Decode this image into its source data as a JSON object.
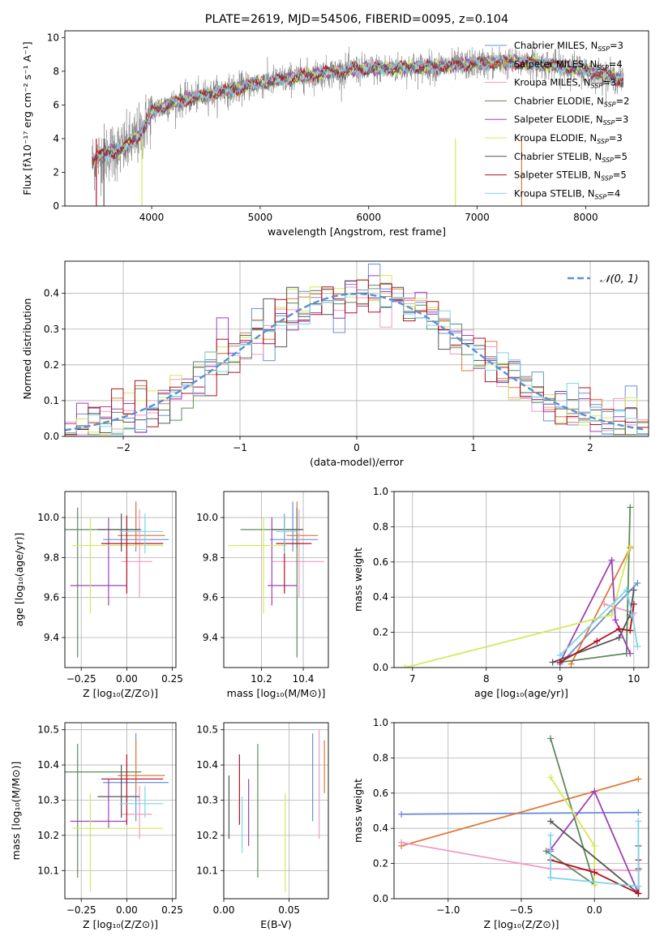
{
  "colors": [
    "#6b8fd6",
    "#e07b39",
    "#f09ac4",
    "#5c8a5c",
    "#a040b8",
    "#d4e85a",
    "#555555",
    "#b01020",
    "#7dd4e8"
  ],
  "chart_data": [
    {
      "id": "spectrum",
      "type": "line",
      "title": "PLATE=2619, MJD=54506, FIBERID=0095, z=0.104",
      "xlabel": "wavelength [Angstrom, rest frame]",
      "ylabel": "Flux [fλ10⁻¹⁷ erg cm⁻² s⁻¹ A⁻¹]",
      "xlim": [
        3200,
        8580
      ],
      "ylim": [
        0,
        10.4
      ],
      "xticks": [
        4000,
        5000,
        6000,
        7000,
        8000
      ],
      "yticks": [
        0,
        2,
        4,
        6,
        8,
        10
      ],
      "grid": false,
      "legend_position": "right",
      "legend": [
        {
          "label": "Chabrier MILES, N",
          "sub": "SSP",
          "tail": "=3",
          "color": "#6b8fd6"
        },
        {
          "label": "Salpeter MILES, N",
          "sub": "SSP",
          "tail": "=4",
          "color": "#e07b39"
        },
        {
          "label": "Kroupa MILES, N",
          "sub": "SSP",
          "tail": "=3",
          "color": "#f09ac4"
        },
        {
          "label": "Chabrier ELODIE, N",
          "sub": "SSP",
          "tail": "=2",
          "color": "#5c8a5c"
        },
        {
          "label": "Salpeter ELODIE, N",
          "sub": "SSP",
          "tail": "=3",
          "color": "#a040b8"
        },
        {
          "label": "Kroupa ELODIE, N",
          "sub": "SSP",
          "tail": "=3",
          "color": "#d4e85a"
        },
        {
          "label": "Chabrier STELIB, N",
          "sub": "SSP",
          "tail": "=5",
          "color": "#555555"
        },
        {
          "label": "Salpeter STELIB, N",
          "sub": "SSP",
          "tail": "=5",
          "color": "#b01020"
        },
        {
          "label": "Kroupa STELIB, N",
          "sub": "SSP",
          "tail": "=4",
          "color": "#7dd4e8"
        }
      ],
      "data_color": "#808080",
      "model_color": "#7dd4e8",
      "continuum": [
        [
          3450,
          2.7
        ],
        [
          3600,
          3.2
        ],
        [
          3750,
          3.4
        ],
        [
          3900,
          4.3
        ],
        [
          4000,
          5.6
        ],
        [
          4100,
          5.9
        ],
        [
          4300,
          6.3
        ],
        [
          4500,
          6.6
        ],
        [
          4800,
          7.0
        ],
        [
          5000,
          7.3
        ],
        [
          5300,
          7.6
        ],
        [
          5600,
          7.9
        ],
        [
          5900,
          8.1
        ],
        [
          6300,
          8.2
        ],
        [
          6700,
          8.3
        ],
        [
          7100,
          8.5
        ],
        [
          7500,
          8.5
        ],
        [
          7900,
          8.2
        ],
        [
          8350,
          7.5
        ]
      ]
    },
    {
      "id": "residuals",
      "type": "line",
      "xlabel": "(data-model)/error",
      "ylabel": "Normed distribution",
      "xlim": [
        -2.5,
        2.5
      ],
      "ylim": [
        0,
        0.49
      ],
      "xticks": [
        -2,
        -1,
        0,
        1,
        2
      ],
      "yticks": [
        0.0,
        0.1,
        0.2,
        0.3,
        0.4
      ],
      "grid": true,
      "legend_position": "top-right",
      "gauss_label": "𝒩(0, 1)",
      "gauss_color": "#5b8fd6",
      "bin_width": 0.1
    },
    {
      "id": "age-vs-z",
      "type": "scatter",
      "xlabel": "Z [log₁₀(Z/Z⊙)]",
      "ylabel": "age  [log₁₀(age/yr)]",
      "xlim": [
        -0.34,
        0.27
      ],
      "ylim": [
        9.25,
        10.13
      ],
      "xticks": [
        -0.25,
        0.0,
        0.25
      ],
      "yticks": [
        9.4,
        9.6,
        9.8,
        10.0
      ],
      "grid": true,
      "points": [
        {
          "x": 0.05,
          "y": 9.89,
          "xe": [
            0.18,
            0.18
          ],
          "ye": [
            0.06,
            0.19
          ]
        },
        {
          "x": 0.05,
          "y": 9.91,
          "xe": [
            0.1,
            0.16
          ],
          "ye": [
            0.06,
            0.17
          ]
        },
        {
          "x": 0.07,
          "y": 9.78,
          "xe": [
            0.1,
            0.07
          ],
          "ye": [
            0.18,
            0.26
          ]
        },
        {
          "x": -0.27,
          "y": 9.94,
          "xe": [
            0.1,
            0.35
          ],
          "ye": [
            0.64,
            0.11
          ]
        },
        {
          "x": -0.1,
          "y": 9.66,
          "xe": [
            0.21,
            0.1
          ],
          "ye": [
            0.1,
            0.34
          ]
        },
        {
          "x": -0.2,
          "y": 9.86,
          "xe": [
            0.1,
            0.4
          ],
          "ye": [
            0.34,
            0.14
          ]
        },
        {
          "x": -0.03,
          "y": 9.94,
          "xe": [
            0.13,
            0.1
          ],
          "ye": [
            0.11,
            0.08
          ]
        },
        {
          "x": 0.0,
          "y": 9.87,
          "xe": [
            0.14,
            0.2
          ],
          "ye": [
            0.25,
            0.14
          ]
        },
        {
          "x": 0.1,
          "y": 9.93,
          "xe": [
            0.14,
            0.1
          ],
          "ye": [
            0.11,
            0.09
          ]
        }
      ]
    },
    {
      "id": "age-vs-mass",
      "type": "scatter",
      "xlabel": "mass [log₁₀(M/M⊙)]",
      "xlim": [
        10.02,
        10.52
      ],
      "ylim": [
        9.25,
        10.13
      ],
      "xticks": [
        10.2,
        10.4
      ],
      "yticks": [
        9.4,
        9.6,
        9.8,
        10.0
      ],
      "grid": true,
      "points": [
        {
          "x": 10.35,
          "y": 9.89,
          "xe": [
            0.11,
            0.12
          ],
          "ye": [
            0.06,
            0.19
          ]
        },
        {
          "x": 10.37,
          "y": 9.91,
          "xe": [
            0.05,
            0.1
          ],
          "ye": [
            0.06,
            0.17
          ]
        },
        {
          "x": 10.38,
          "y": 9.78,
          "xe": [
            0.13,
            0.12
          ],
          "ye": [
            0.18,
            0.26
          ]
        },
        {
          "x": 10.37,
          "y": 9.94,
          "xe": [
            0.27,
            0.03
          ],
          "ye": [
            0.64,
            0.11
          ]
        },
        {
          "x": 10.25,
          "y": 9.66,
          "xe": [
            0.02,
            0.12
          ],
          "ye": [
            0.1,
            0.34
          ]
        },
        {
          "x": 10.21,
          "y": 9.86,
          "xe": [
            0.17,
            0.11
          ],
          "ye": [
            0.34,
            0.14
          ]
        },
        {
          "x": 10.31,
          "y": 9.94,
          "xe": [
            0.06,
            0.09
          ],
          "ye": [
            0.11,
            0.08
          ]
        },
        {
          "x": 10.31,
          "y": 9.87,
          "xe": [
            0.04,
            0.13
          ],
          "ye": [
            0.25,
            0.14
          ]
        },
        {
          "x": 10.31,
          "y": 9.93,
          "xe": [
            0.04,
            0.06
          ],
          "ye": [
            0.11,
            0.09
          ]
        }
      ]
    },
    {
      "id": "weight-vs-age",
      "type": "line",
      "xlabel": "age  [log₁₀(age/yr)]",
      "ylabel": "mass weight",
      "xlim": [
        6.75,
        10.2
      ],
      "ylim": [
        0,
        1
      ],
      "xticks": [
        7,
        8,
        9,
        10
      ],
      "yticks": [
        0.0,
        0.2,
        0.4,
        0.6,
        0.8,
        1.0
      ],
      "grid": true,
      "series": [
        {
          "x": [
            9.0,
            10.05
          ],
          "y": [
            0.02,
            0.48
          ]
        },
        {
          "x": [
            9.15,
            9.95
          ],
          "y": [
            0.02,
            0.68
          ]
        },
        {
          "x": [
            9.6,
            10.0
          ],
          "y": [
            0.36,
            0.31
          ]
        },
        {
          "x": [
            9.0,
            9.9,
            9.95
          ],
          "y": [
            0.03,
            0.08,
            0.91
          ]
        },
        {
          "x": [
            9.0,
            9.7,
            9.75,
            9.95
          ],
          "y": [
            0.03,
            0.61,
            0.27,
            0.08
          ]
        },
        {
          "x": [
            6.9,
            9.7,
            9.95
          ],
          "y": [
            0.0,
            0.3,
            0.69
          ]
        },
        {
          "x": [
            8.9,
            9.8,
            9.95,
            10.0
          ],
          "y": [
            0.03,
            0.17,
            0.3,
            0.44
          ]
        },
        {
          "x": [
            9.0,
            9.5,
            9.8,
            9.95,
            10.0
          ],
          "y": [
            0.03,
            0.15,
            0.22,
            0.21,
            0.36
          ]
        },
        {
          "x": [
            9.0,
            9.9,
            9.98,
            10.05
          ],
          "y": [
            0.07,
            0.44,
            0.3,
            0.12
          ]
        }
      ]
    },
    {
      "id": "mass-vs-z",
      "type": "scatter",
      "xlabel": "Z [log₁₀(Z/Z⊙)]",
      "ylabel": "mass [log₁₀(M/M⊙)]",
      "xlim": [
        -0.34,
        0.27
      ],
      "ylim": [
        10.02,
        10.52
      ],
      "xticks": [
        -0.25,
        0.0,
        0.25
      ],
      "yticks": [
        10.1,
        10.2,
        10.3,
        10.4,
        10.5
      ],
      "grid": true,
      "points": [
        {
          "x": 0.05,
          "y": 10.35,
          "xe": [
            0.18,
            0.18
          ],
          "ye": [
            0.11,
            0.14
          ]
        },
        {
          "x": 0.05,
          "y": 10.37,
          "xe": [
            0.1,
            0.16
          ],
          "ye": [
            0.05,
            0.1
          ]
        },
        {
          "x": 0.07,
          "y": 10.26,
          "xe": [
            0.1,
            0.07
          ],
          "ye": [
            0.07,
            0.08
          ]
        },
        {
          "x": -0.27,
          "y": 10.38,
          "xe": [
            0.1,
            0.35
          ],
          "ye": [
            0.3,
            0.08
          ]
        },
        {
          "x": -0.1,
          "y": 10.24,
          "xe": [
            0.21,
            0.1
          ],
          "ye": [
            0.02,
            0.12
          ]
        },
        {
          "x": -0.2,
          "y": 10.22,
          "xe": [
            0.1,
            0.4
          ],
          "ye": [
            0.18,
            0.1
          ]
        },
        {
          "x": -0.03,
          "y": 10.31,
          "xe": [
            0.13,
            0.1
          ],
          "ye": [
            0.06,
            0.09
          ]
        },
        {
          "x": 0.0,
          "y": 10.36,
          "xe": [
            0.14,
            0.2
          ],
          "ye": [
            0.13,
            0.07
          ]
        },
        {
          "x": 0.1,
          "y": 10.29,
          "xe": [
            0.14,
            0.1
          ],
          "ye": [
            0.04,
            0.05
          ]
        }
      ]
    },
    {
      "id": "mass-vs-ebv",
      "type": "scatter",
      "xlabel": "E(B-V)",
      "xlim": [
        0.0,
        0.08
      ],
      "ylim": [
        10.02,
        10.52
      ],
      "xticks": [
        0.0,
        0.05
      ],
      "yticks": [
        10.1,
        10.2,
        10.3,
        10.4,
        10.5
      ],
      "grid": true,
      "points": [
        {
          "x": 0.068,
          "y": 10.35,
          "ye": [
            0.11,
            0.14
          ]
        },
        {
          "x": 0.077,
          "y": 10.37,
          "ye": [
            0.05,
            0.1
          ]
        },
        {
          "x": 0.073,
          "y": 10.26,
          "ye": [
            0.07,
            0.24
          ]
        },
        {
          "x": 0.026,
          "y": 10.38,
          "ye": [
            0.3,
            0.08
          ]
        },
        {
          "x": 0.019,
          "y": 10.24,
          "ye": [
            0.07,
            0.12
          ]
        },
        {
          "x": 0.047,
          "y": 10.22,
          "ye": [
            0.18,
            0.1
          ]
        },
        {
          "x": 0.004,
          "y": 10.31,
          "ye": [
            0.12,
            0.06
          ]
        },
        {
          "x": 0.012,
          "y": 10.36,
          "ye": [
            0.13,
            0.07
          ]
        },
        {
          "x": 0.014,
          "y": 10.25,
          "ye": [
            0.1,
            0.06
          ]
        }
      ]
    },
    {
      "id": "weight-vs-z",
      "type": "line",
      "xlabel": "Z [log₁₀(Z/Z⊙)]",
      "ylabel": "mass weight",
      "xlim": [
        -1.37,
        0.37
      ],
      "ylim": [
        0,
        1
      ],
      "xticks": [
        -1.0,
        -0.5,
        0.0
      ],
      "yticks": [
        0.0,
        0.2,
        0.4,
        0.6,
        0.8,
        1.0
      ],
      "grid": true,
      "series": [
        {
          "x": [
            -1.32,
            0.3
          ],
          "y": [
            0.48,
            0.49
          ]
        },
        {
          "x": [
            -1.32,
            0.3
          ],
          "y": [
            0.3,
            0.68
          ]
        },
        {
          "x": [
            -1.32,
            -0.3,
            0.3
          ],
          "y": [
            0.32,
            0.17,
            0.16
          ]
        },
        {
          "x": [
            -0.3,
            0.0,
            -0.33
          ],
          "y": [
            0.91,
            0.08,
            0.27
          ]
        },
        {
          "x": [
            -0.3,
            -0.3,
            0.0,
            0.3
          ],
          "y": [
            0.27,
            0.28,
            0.61,
            0.03
          ]
        },
        {
          "x": [
            -0.3,
            0.0,
            0.0
          ],
          "y": [
            0.69,
            0.3,
            0.08
          ]
        },
        {
          "x": [
            -0.3,
            0.3,
            0.3,
            0.3
          ],
          "y": [
            0.44,
            0.03,
            0.3,
            0.17
          ]
        },
        {
          "x": [
            -0.3,
            0.0,
            0.3,
            0.3
          ],
          "y": [
            0.22,
            0.15,
            0.03,
            0.22
          ]
        },
        {
          "x": [
            -0.3,
            -0.3,
            0.3,
            0.3
          ],
          "y": [
            0.36,
            0.12,
            0.07,
            0.44
          ]
        }
      ]
    }
  ]
}
